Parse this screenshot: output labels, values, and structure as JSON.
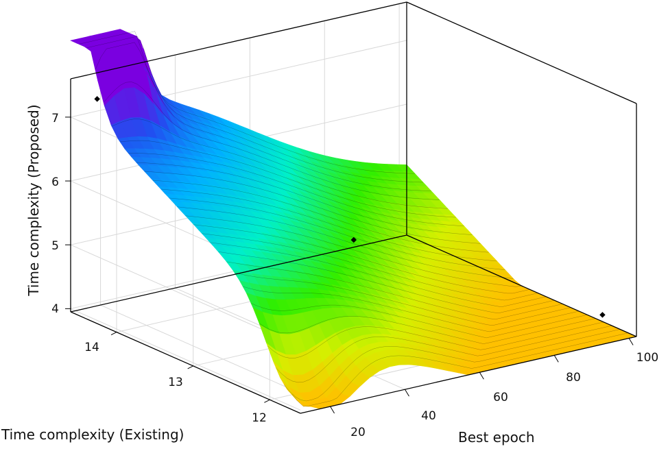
{
  "chart_data": {
    "type": "surface3d",
    "title": "",
    "xlabel": "Best epoch",
    "ylabel": "Time complexity (Existing)",
    "zlabel": "Time complexity (Proposed)",
    "xlim": [
      12,
      102
    ],
    "ylim": [
      11.6,
      14.6
    ],
    "zlim": [
      3.95,
      7.6
    ],
    "x_ticks": [
      "20",
      "40",
      "60",
      "80",
      "100"
    ],
    "y_ticks": [
      "12",
      "13",
      "14"
    ],
    "z_ticks": [
      "4",
      "5",
      "6",
      "7"
    ],
    "colormap": [
      "#ffc000",
      "#d4f000",
      "#30ee00",
      "#00f0c8",
      "#00b0ff",
      "#2050f0",
      "#7a00e0"
    ],
    "grid": true,
    "points": [
      {
        "x": 15,
        "y": 14.4,
        "z": 7.35
      },
      {
        "x": 55,
        "y": 13.0,
        "z": 5.35
      },
      {
        "x": 97,
        "y": 11.8,
        "z": 4.25
      }
    ]
  }
}
